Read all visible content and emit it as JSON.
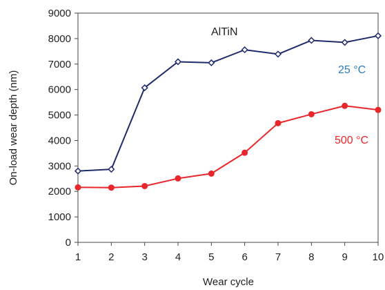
{
  "chart_data": {
    "type": "line",
    "title": "",
    "xlabel": "Wear cycle",
    "ylabel": "On-load wear depth (nm)",
    "x": [
      1,
      2,
      3,
      4,
      5,
      6,
      7,
      8,
      9,
      10
    ],
    "xlim": [
      1,
      10
    ],
    "ylim": [
      0,
      9000
    ],
    "xticks": [
      1,
      2,
      3,
      4,
      5,
      6,
      7,
      8,
      9,
      10
    ],
    "yticks": [
      0,
      1000,
      2000,
      3000,
      4000,
      5000,
      6000,
      7000,
      8000,
      9000
    ],
    "grid": false,
    "series": [
      {
        "name": "25 °C",
        "color": "#1f2a6b",
        "marker": "open-diamond",
        "values": [
          2800,
          2870,
          6070,
          7090,
          7050,
          7560,
          7390,
          7930,
          7850,
          8110
        ]
      },
      {
        "name": "500 °C",
        "color": "#e8262b",
        "marker": "filled-circle",
        "values": [
          2160,
          2150,
          2210,
          2510,
          2700,
          3520,
          4680,
          5030,
          5360,
          5200
        ]
      }
    ],
    "annotations": [
      {
        "text": "AlTiN",
        "color": "#222222"
      },
      {
        "text": "25 °C",
        "color": "#2b7bbf"
      },
      {
        "text": "500 °C",
        "color": "#e8262b"
      }
    ]
  }
}
